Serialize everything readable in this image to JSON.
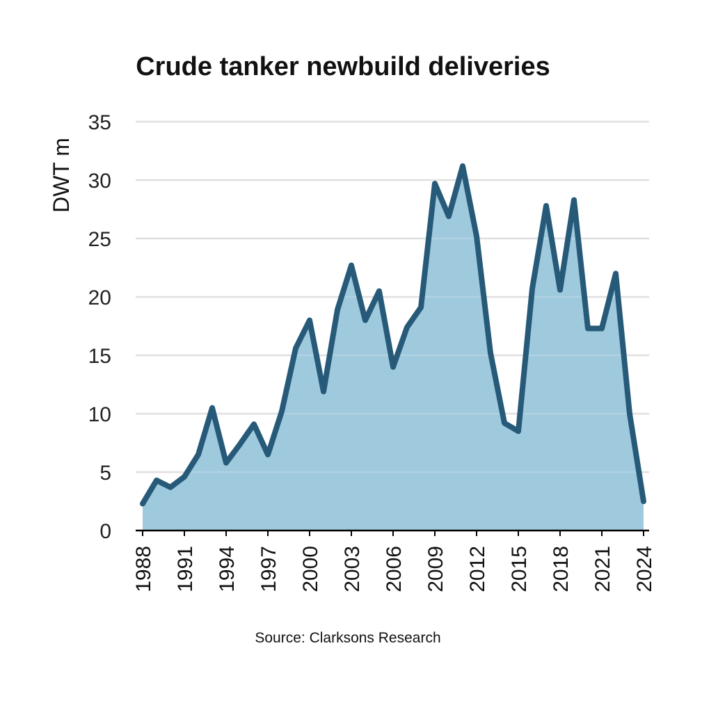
{
  "chart_data": {
    "type": "area",
    "title": "Crude tanker newbuild deliveries",
    "ylabel": "DWT m",
    "xlabel": "",
    "source": "Source: Clarksons Research",
    "ylim": [
      0,
      35
    ],
    "xlim": [
      1988,
      2024
    ],
    "yticks": [
      "0",
      "5",
      "10",
      "15",
      "20",
      "25",
      "30",
      "35"
    ],
    "xticks": [
      "1988",
      "1991",
      "1994",
      "1997",
      "2000",
      "2003",
      "2006",
      "2009",
      "2012",
      "2015",
      "2018",
      "2021",
      "2024"
    ],
    "grid": true,
    "legend": "none",
    "colors": {
      "line": "#265a78",
      "fill": "#9fc9dd",
      "grid": "#d9d9d9",
      "axis": "#000000"
    },
    "x": [
      1988,
      1989,
      1990,
      1991,
      1992,
      1993,
      1994,
      1995,
      1996,
      1997,
      1998,
      1999,
      2000,
      2001,
      2002,
      2003,
      2004,
      2005,
      2006,
      2007,
      2008,
      2009,
      2010,
      2011,
      2012,
      2013,
      2014,
      2015,
      2016,
      2017,
      2018,
      2019,
      2020,
      2021,
      2022,
      2023,
      2024
    ],
    "values": [
      2.3,
      4.3,
      3.7,
      4.6,
      6.5,
      10.5,
      5.8,
      7.4,
      9.1,
      6.5,
      10.2,
      15.6,
      18.0,
      11.9,
      18.9,
      22.7,
      18.0,
      20.5,
      14.0,
      17.4,
      19.1,
      29.7,
      26.9,
      31.2,
      25.2,
      15.2,
      9.2,
      8.5,
      20.7,
      27.8,
      20.6,
      28.3,
      17.3,
      17.3,
      22.0,
      10.0,
      2.5
    ]
  }
}
